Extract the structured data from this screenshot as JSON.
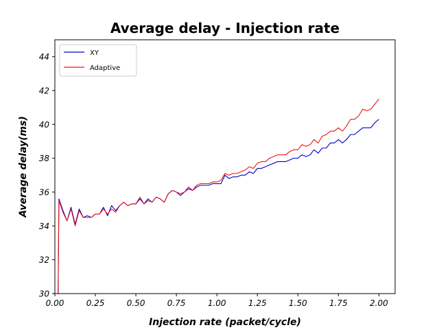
{
  "chart_data": {
    "type": "line",
    "title": "Average delay - Injection rate",
    "xlabel": "Injection rate (packet/cycle)",
    "ylabel": "Average delay(ms)",
    "xlim": [
      0.0,
      2.1
    ],
    "ylim": [
      30,
      45
    ],
    "xticks": [
      "0.00",
      "0.25",
      "0.50",
      "0.75",
      "1.00",
      "1.25",
      "1.50",
      "1.75",
      "2.00"
    ],
    "yticks": [
      "30",
      "32",
      "34",
      "36",
      "38",
      "40",
      "42",
      "44"
    ],
    "grid": false,
    "legend_position": "top-left",
    "series": [
      {
        "name": "XY",
        "color": "#0000cc",
        "x": [
          0.02,
          0.025,
          0.05,
          0.075,
          0.1,
          0.125,
          0.15,
          0.175,
          0.2,
          0.225,
          0.25,
          0.275,
          0.3,
          0.325,
          0.35,
          0.375,
          0.4,
          0.425,
          0.45,
          0.475,
          0.5,
          0.525,
          0.55,
          0.575,
          0.6,
          0.625,
          0.65,
          0.675,
          0.7,
          0.725,
          0.75,
          0.775,
          0.8,
          0.825,
          0.85,
          0.875,
          0.9,
          0.925,
          0.95,
          0.975,
          1.0,
          1.025,
          1.05,
          1.075,
          1.1,
          1.125,
          1.15,
          1.175,
          1.2,
          1.225,
          1.25,
          1.275,
          1.3,
          1.325,
          1.35,
          1.375,
          1.4,
          1.425,
          1.45,
          1.475,
          1.5,
          1.525,
          1.55,
          1.575,
          1.6,
          1.625,
          1.65,
          1.675,
          1.7,
          1.725,
          1.75,
          1.775,
          1.8,
          1.825,
          1.85,
          1.875,
          1.9,
          1.925,
          1.95,
          1.975,
          2.0
        ],
        "y": [
          30.0,
          35.6,
          34.9,
          34.3,
          35.1,
          34.1,
          35.0,
          34.5,
          34.6,
          34.5,
          34.7,
          34.7,
          35.1,
          34.6,
          35.2,
          34.9,
          35.2,
          35.4,
          35.2,
          35.3,
          35.3,
          35.6,
          35.3,
          35.6,
          35.4,
          35.7,
          35.6,
          35.4,
          35.9,
          36.1,
          36.0,
          35.8,
          36.0,
          36.2,
          36.1,
          36.3,
          36.4,
          36.4,
          36.4,
          36.5,
          36.5,
          36.5,
          37.0,
          36.8,
          36.9,
          36.9,
          37.0,
          37.0,
          37.2,
          37.1,
          37.4,
          37.4,
          37.5,
          37.6,
          37.7,
          37.8,
          37.8,
          37.8,
          37.9,
          38.0,
          38.0,
          38.2,
          38.1,
          38.2,
          38.5,
          38.3,
          38.6,
          38.6,
          38.9,
          38.9,
          39.1,
          38.9,
          39.1,
          39.4,
          39.4,
          39.6,
          39.8,
          39.8,
          39.8,
          40.1,
          40.3
        ]
      },
      {
        "name": "Adaptive",
        "color": "#ee1111",
        "x": [
          0.02,
          0.025,
          0.05,
          0.075,
          0.1,
          0.125,
          0.15,
          0.175,
          0.2,
          0.225,
          0.25,
          0.275,
          0.3,
          0.325,
          0.35,
          0.375,
          0.4,
          0.425,
          0.45,
          0.475,
          0.5,
          0.525,
          0.55,
          0.575,
          0.6,
          0.625,
          0.65,
          0.675,
          0.7,
          0.725,
          0.75,
          0.775,
          0.8,
          0.825,
          0.85,
          0.875,
          0.9,
          0.925,
          0.95,
          0.975,
          1.0,
          1.025,
          1.05,
          1.075,
          1.1,
          1.125,
          1.15,
          1.175,
          1.2,
          1.225,
          1.25,
          1.275,
          1.3,
          1.325,
          1.35,
          1.375,
          1.4,
          1.425,
          1.45,
          1.475,
          1.5,
          1.525,
          1.55,
          1.575,
          1.6,
          1.625,
          1.65,
          1.675,
          1.7,
          1.725,
          1.75,
          1.775,
          1.8,
          1.825,
          1.85,
          1.875,
          1.9,
          1.925,
          1.95,
          1.975,
          2.0
        ],
        "y": [
          30.0,
          35.5,
          34.8,
          34.3,
          35.0,
          34.0,
          34.9,
          34.5,
          34.5,
          34.5,
          34.7,
          34.7,
          35.0,
          34.7,
          35.0,
          34.8,
          35.2,
          35.4,
          35.2,
          35.3,
          35.3,
          35.7,
          35.3,
          35.5,
          35.4,
          35.7,
          35.6,
          35.4,
          35.9,
          36.1,
          36.0,
          35.9,
          36.0,
          36.3,
          36.1,
          36.4,
          36.5,
          36.5,
          36.5,
          36.6,
          36.6,
          36.7,
          37.1,
          37.0,
          37.1,
          37.1,
          37.2,
          37.3,
          37.5,
          37.4,
          37.7,
          37.8,
          37.8,
          38.0,
          38.1,
          38.2,
          38.2,
          38.2,
          38.4,
          38.5,
          38.5,
          38.8,
          38.7,
          38.8,
          39.1,
          38.9,
          39.3,
          39.4,
          39.6,
          39.6,
          39.8,
          39.6,
          39.9,
          40.3,
          40.3,
          40.5,
          40.9,
          40.8,
          40.9,
          41.2,
          41.5
        ]
      }
    ]
  }
}
